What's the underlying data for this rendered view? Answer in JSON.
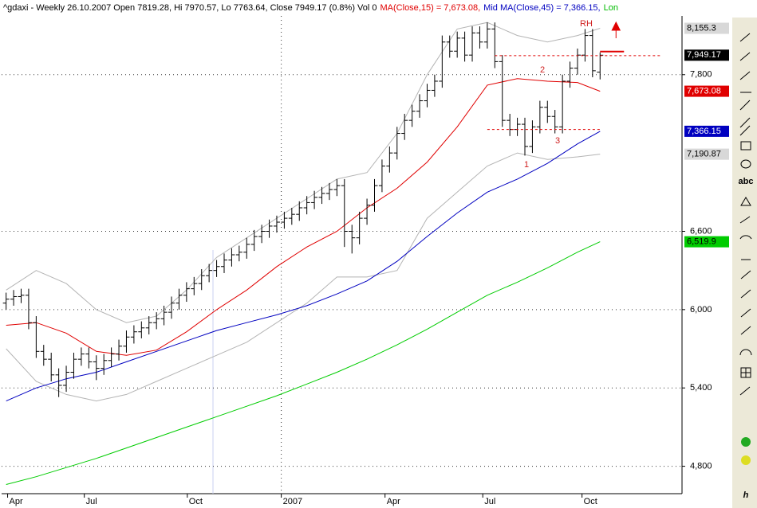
{
  "chart_data": {
    "type": "ohlc",
    "title_parts": [
      {
        "text": "^gdaxi - Weekly 26.10.2007 Open 7819.28, Hi 7970.57, Lo 7763.64, Close 7949.17 (0.8%) Vol 0",
        "color": "#000000"
      },
      {
        "text": "MA(Close,15) = 7,673.08,",
        "color": "#e00000"
      },
      {
        "text": "Mid MA(Close,45) = 7,366.15,",
        "color": "#0000c0"
      },
      {
        "text": "Lon",
        "color": "#00bb00"
      }
    ],
    "xlim": [
      -0.6,
      89.9
    ],
    "xticks": [
      {
        "value": 0.2,
        "label": "Apr"
      },
      {
        "value": 10.4,
        "label": "Jul"
      },
      {
        "value": 24.1,
        "label": "Oct"
      },
      {
        "value": 36.6,
        "label": "2007"
      },
      {
        "value": 50.4,
        "label": "Apr"
      },
      {
        "value": 63.4,
        "label": "Jul"
      },
      {
        "value": 76.6,
        "label": "Oct"
      }
    ],
    "ylim": [
      4590,
      8250
    ],
    "yticks": [
      {
        "value": 7800,
        "label": "7,800"
      },
      {
        "value": 6600,
        "label": "6,600"
      },
      {
        "value": 6000,
        "label": "6,000"
      },
      {
        "value": 5400,
        "label": "5,400"
      },
      {
        "value": 4800,
        "label": "4,800"
      }
    ],
    "grid": true,
    "ohlc": {
      "color": "#000000",
      "last_label": "7,949.17",
      "open": [
        6050,
        6080,
        6100,
        6110,
        5900,
        5680,
        5620,
        5500,
        5420,
        5520,
        5620,
        5660,
        5600,
        5550,
        5610,
        5660,
        5720,
        5790,
        5830,
        5860,
        5900,
        5930,
        5980,
        6050,
        6110,
        6160,
        6200,
        6260,
        6300,
        6330,
        6380,
        6420,
        6440,
        6500,
        6560,
        6600,
        6640,
        6670,
        6700,
        6730,
        6780,
        6820,
        6860,
        6890,
        6920,
        6950,
        6600,
        6550,
        6700,
        6800,
        6950,
        7100,
        7200,
        7350,
        7450,
        7520,
        7600,
        7680,
        7750,
        8050,
        7980,
        8080,
        7950,
        8120,
        8050,
        8150,
        7900,
        7450,
        7380,
        7420,
        7250,
        7400,
        7550,
        7480,
        7400,
        7750,
        7850,
        7950,
        8100,
        7819.28
      ],
      "high": [
        6130,
        6150,
        6160,
        6160,
        5950,
        5730,
        5670,
        5550,
        5570,
        5670,
        5710,
        5710,
        5650,
        5660,
        5710,
        5770,
        5840,
        5880,
        5910,
        5950,
        5980,
        6030,
        6100,
        6160,
        6210,
        6250,
        6310,
        6350,
        6380,
        6430,
        6470,
        6490,
        6550,
        6610,
        6650,
        6690,
        6720,
        6750,
        6780,
        6830,
        6870,
        6910,
        6940,
        6970,
        7000,
        7000,
        6650,
        6750,
        6850,
        7000,
        7150,
        7250,
        7400,
        7500,
        7570,
        7650,
        7730,
        7800,
        8100,
        8100,
        8130,
        8130,
        8170,
        8170,
        8200,
        8200,
        7950,
        7500,
        7470,
        7470,
        7450,
        7600,
        7600,
        7530,
        7800,
        7900,
        8000,
        8150,
        8150,
        7970.57
      ],
      "low": [
        6000,
        6030,
        6050,
        5850,
        5630,
        5570,
        5450,
        5330,
        5370,
        5470,
        5570,
        5550,
        5460,
        5500,
        5560,
        5610,
        5670,
        5740,
        5780,
        5810,
        5850,
        5880,
        5930,
        6000,
        6060,
        6110,
        6150,
        6210,
        6250,
        6280,
        6330,
        6370,
        6390,
        6450,
        6510,
        6550,
        6590,
        6620,
        6650,
        6680,
        6730,
        6770,
        6810,
        6840,
        6870,
        6480,
        6430,
        6500,
        6650,
        6750,
        6900,
        7050,
        7150,
        7300,
        7400,
        7470,
        7550,
        7630,
        7700,
        7930,
        7930,
        7900,
        7900,
        8000,
        8000,
        7850,
        7400,
        7330,
        7330,
        7180,
        7200,
        7350,
        7430,
        7350,
        7350,
        7700,
        7800,
        7900,
        7780,
        7763.64
      ],
      "close": [
        6080,
        6100,
        6110,
        5900,
        5680,
        5620,
        5500,
        5420,
        5520,
        5620,
        5660,
        5600,
        5550,
        5610,
        5660,
        5720,
        5790,
        5830,
        5860,
        5900,
        5930,
        5980,
        6050,
        6110,
        6160,
        6200,
        6260,
        6300,
        6330,
        6380,
        6420,
        6440,
        6500,
        6560,
        6600,
        6640,
        6670,
        6700,
        6730,
        6780,
        6820,
        6860,
        6890,
        6920,
        6950,
        6600,
        6550,
        6700,
        6800,
        6950,
        7100,
        7200,
        7350,
        7450,
        7520,
        7600,
        7680,
        7750,
        8050,
        7980,
        8080,
        7950,
        8120,
        8050,
        8150,
        7900,
        7450,
        7380,
        7420,
        7250,
        7400,
        7550,
        7480,
        7400,
        7750,
        7850,
        7950,
        8100,
        7830,
        7949.17
      ]
    },
    "line_x": [
      0,
      4,
      8,
      12,
      16,
      20,
      24,
      28,
      32,
      36,
      40,
      44,
      48,
      52,
      56,
      60,
      64,
      68,
      72,
      76,
      79
    ],
    "series": [
      {
        "name": "BB upper",
        "color": "#b4b4b4",
        "label_bg": "#d8d8d8",
        "label_fg": "#000000",
        "last_label": "8,155.3",
        "values": [
          6150,
          6300,
          6200,
          6000,
          5900,
          5950,
          6150,
          6400,
          6550,
          6700,
          6850,
          7000,
          7050,
          7350,
          7800,
          8150,
          8200,
          8100,
          8050,
          8100,
          8155.3
        ]
      },
      {
        "name": "BB lower",
        "color": "#b4b4b4",
        "label_bg": "#d8d8d8",
        "label_fg": "#000000",
        "last_label": "7,190.87",
        "values": [
          5700,
          5450,
          5350,
          5300,
          5350,
          5450,
          5550,
          5650,
          5750,
          5900,
          6050,
          6250,
          6250,
          6300,
          6700,
          6900,
          7100,
          7200,
          7150,
          7170,
          7190.87
        ]
      },
      {
        "name": "MA(Close,15)",
        "color": "#e00000",
        "label_bg": "#e00000",
        "label_fg": "#ffffff",
        "last_label": "7,673.08",
        "values": [
          5880,
          5900,
          5820,
          5680,
          5650,
          5690,
          5830,
          6000,
          6150,
          6330,
          6480,
          6600,
          6780,
          6930,
          7130,
          7400,
          7720,
          7770,
          7750,
          7740,
          7673.08
        ]
      },
      {
        "name": "MA(Close,45)",
        "color": "#0000c0",
        "label_bg": "#0000c0",
        "label_fg": "#ffffff",
        "last_label": "7,366.15",
        "values": [
          5300,
          5400,
          5470,
          5520,
          5600,
          5680,
          5760,
          5840,
          5900,
          5960,
          6030,
          6120,
          6220,
          6370,
          6560,
          6740,
          6900,
          7000,
          7120,
          7270,
          7366.15
        ]
      },
      {
        "name": "Long MA",
        "color": "#00cc00",
        "label_bg": "#00cc00",
        "label_fg": "#000000",
        "last_label": "6,519.9",
        "values": [
          4660,
          4720,
          4790,
          4860,
          4940,
          5020,
          5100,
          5180,
          5260,
          5340,
          5430,
          5520,
          5620,
          5730,
          5850,
          5980,
          6110,
          6210,
          6320,
          6440,
          6519.9
        ]
      }
    ],
    "levels": [
      7946,
      7380
    ],
    "target": 7977,
    "annotations": [
      "RH",
      "1",
      "2",
      "3"
    ],
    "toolbar_labels": [
      "abc",
      "h"
    ]
  }
}
